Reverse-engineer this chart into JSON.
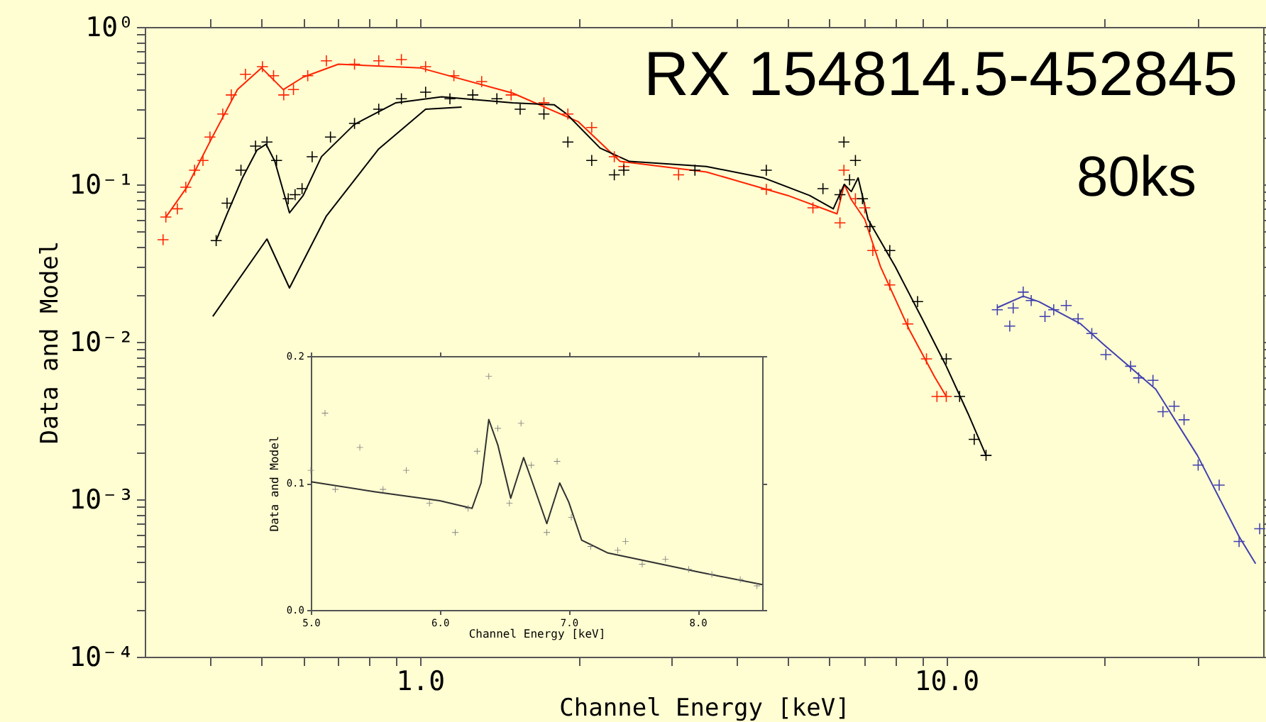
{
  "chart_data": [
    {
      "type": "scatter",
      "xlabel": "Channel Energy [keV]",
      "ylabel": "Data and Model",
      "annotations": [
        "RX 154814.5-452845",
        "80ks"
      ],
      "log": "xy",
      "grid": false,
      "marker": "cross",
      "xlim": [
        0.3,
        40
      ],
      "ylim": [
        0.0001,
        1
      ],
      "xticks": [
        {
          "value": 0.4,
          "label": null
        },
        {
          "value": 0.5,
          "label": null
        },
        {
          "value": 0.6,
          "label": null
        },
        {
          "value": 0.7,
          "label": null
        },
        {
          "value": 0.8,
          "label": null
        },
        {
          "value": 0.9,
          "label": null
        },
        {
          "value": 1,
          "label": "1.0"
        },
        {
          "value": 2,
          "label": null
        },
        {
          "value": 3,
          "label": null
        },
        {
          "value": 4,
          "label": null
        },
        {
          "value": 5,
          "label": null
        },
        {
          "value": 6,
          "label": null
        },
        {
          "value": 7,
          "label": null
        },
        {
          "value": 8,
          "label": null
        },
        {
          "value": 9,
          "label": null
        },
        {
          "value": 10,
          "label": "10.0"
        },
        {
          "value": 20,
          "label": null
        },
        {
          "value": 30,
          "label": null
        }
      ],
      "yticks": [
        {
          "value": 0.0001,
          "label": "10⁻⁴"
        },
        {
          "value": 0.0002,
          "label": null
        },
        {
          "value": 0.0003,
          "label": null
        },
        {
          "value": 0.0004,
          "label": null
        },
        {
          "value": 0.0005,
          "label": null
        },
        {
          "value": 0.0006,
          "label": null
        },
        {
          "value": 0.0007,
          "label": null
        },
        {
          "value": 0.0008,
          "label": null
        },
        {
          "value": 0.0009,
          "label": null
        },
        {
          "value": 0.001,
          "label": "10⁻³"
        },
        {
          "value": 0.002,
          "label": null
        },
        {
          "value": 0.003,
          "label": null
        },
        {
          "value": 0.004,
          "label": null
        },
        {
          "value": 0.005,
          "label": null
        },
        {
          "value": 0.006,
          "label": null
        },
        {
          "value": 0.007,
          "label": null
        },
        {
          "value": 0.008,
          "label": null
        },
        {
          "value": 0.009,
          "label": null
        },
        {
          "value": 0.01,
          "label": "10⁻²"
        },
        {
          "value": 0.02,
          "label": null
        },
        {
          "value": 0.03,
          "label": null
        },
        {
          "value": 0.04,
          "label": null
        },
        {
          "value": 0.05,
          "label": null
        },
        {
          "value": 0.06,
          "label": null
        },
        {
          "value": 0.07,
          "label": null
        },
        {
          "value": 0.08,
          "label": null
        },
        {
          "value": 0.09,
          "label": null
        },
        {
          "value": 0.1,
          "label": "10⁻¹"
        },
        {
          "value": 0.2,
          "label": null
        },
        {
          "value": 0.3,
          "label": null
        },
        {
          "value": 0.4,
          "label": null
        },
        {
          "value": 0.5,
          "label": null
        },
        {
          "value": 0.6,
          "label": null
        },
        {
          "value": 0.7,
          "label": null
        },
        {
          "value": 0.8,
          "label": null
        },
        {
          "value": 0.9,
          "label": null
        },
        {
          "value": 1,
          "label": "10⁰"
        }
      ],
      "series": [
        {
          "color": "#ff2200",
          "x": [
            0.325,
            0.329,
            0.346,
            0.359,
            0.373,
            0.387,
            0.399,
            0.422,
            0.438,
            0.466,
            0.502,
            0.527,
            0.551,
            0.575,
            0.612,
            0.664,
            0.751,
            0.835,
            0.922,
            1.025,
            1.16,
            1.31,
            1.49,
            1.72,
            1.91,
            2.12,
            2.34,
            2.44,
            3.1,
            4.55,
            5.58,
            6.28,
            6.39,
            6.72,
            7.0,
            7.25,
            7.81,
            8.45,
            9.17,
            9.6,
            10.0
          ],
          "values": [
            0.0445,
            0.062,
            0.07,
            0.096,
            0.123,
            0.142,
            0.2,
            0.28,
            0.37,
            0.5,
            0.56,
            0.49,
            0.37,
            0.4,
            0.49,
            0.61,
            0.58,
            0.61,
            0.62,
            0.56,
            0.49,
            0.45,
            0.37,
            0.33,
            0.28,
            0.23,
            0.15,
            0.13,
            0.115,
            0.093,
            0.071,
            0.057,
            0.123,
            0.081,
            0.071,
            0.038,
            0.023,
            0.013,
            0.0078,
            0.0045,
            0.0045
          ]
        },
        {
          "type": "line",
          "marker": "none",
          "color": "#ff2200",
          "x": [
            0.329,
            0.36,
            0.4,
            0.45,
            0.5,
            0.55,
            0.6,
            0.7,
            1.0,
            1.5,
            2.0,
            2.4,
            3.5,
            5.0,
            6.2,
            6.4,
            6.6,
            7.0,
            7.5,
            8.5,
            9.5,
            10.0
          ],
          "values": [
            0.062,
            0.095,
            0.19,
            0.4,
            0.55,
            0.4,
            0.48,
            0.58,
            0.55,
            0.38,
            0.25,
            0.14,
            0.12,
            0.085,
            0.065,
            0.1,
            0.08,
            0.06,
            0.03,
            0.012,
            0.006,
            0.0045
          ]
        },
        {
          "color": "#000000",
          "x": [
            0.41,
            0.43,
            0.457,
            0.487,
            0.512,
            0.534,
            0.562,
            0.579,
            0.597,
            0.624,
            0.676,
            0.751,
            0.835,
            0.922,
            1.025,
            1.14,
            1.26,
            1.4,
            1.55,
            1.72,
            1.91,
            2.12,
            2.34,
            2.44,
            3.33,
            4.55,
            5.83,
            6.28,
            6.39,
            6.55,
            6.72,
            6.93,
            7.16,
            7.81,
            8.82,
            10.0,
            10.6,
            11.3,
            11.9
          ],
          "values": [
            0.044,
            0.076,
            0.123,
            0.175,
            0.186,
            0.142,
            0.081,
            0.086,
            0.094,
            0.15,
            0.2,
            0.244,
            0.3,
            0.35,
            0.385,
            0.35,
            0.37,
            0.35,
            0.3,
            0.28,
            0.186,
            0.142,
            0.115,
            0.123,
            0.123,
            0.123,
            0.094,
            0.086,
            0.186,
            0.107,
            0.142,
            0.081,
            0.054,
            0.038,
            0.018,
            0.0078,
            0.0045,
            0.0024,
            0.0019
          ]
        },
        {
          "type": "line",
          "marker": "none",
          "color": "#000000",
          "x": [
            0.41,
            0.43,
            0.46,
            0.49,
            0.51,
            0.53,
            0.565,
            0.6,
            0.65,
            0.75,
            0.9,
            1.1,
            1.5,
            1.8,
            1.9,
            2.2,
            2.5,
            3.5,
            4.5,
            5.5,
            6.1,
            6.4,
            6.6,
            6.8,
            7.1,
            8.0,
            9.0,
            10.0,
            11.0,
            11.9
          ],
          "values": [
            0.044,
            0.065,
            0.11,
            0.165,
            0.18,
            0.14,
            0.066,
            0.085,
            0.15,
            0.24,
            0.33,
            0.36,
            0.33,
            0.32,
            0.28,
            0.17,
            0.14,
            0.13,
            0.11,
            0.085,
            0.07,
            0.1,
            0.09,
            0.11,
            0.06,
            0.03,
            0.014,
            0.007,
            0.0035,
            0.0019
          ]
        },
        {
          "type": "line",
          "marker": "none",
          "color": "#000000",
          "x": [
            0.404,
            0.512,
            0.565,
            0.664,
            0.835,
            1.025,
            1.2
          ],
          "values": [
            0.0145,
            0.045,
            0.022,
            0.063,
            0.168,
            0.3,
            0.31
          ]
        },
        {
          "color": "#4040b0",
          "x": [
            12.5,
            13.2,
            13.4,
            14.0,
            14.5,
            15.4,
            16.0,
            16.9,
            17.8,
            18.9,
            20.1,
            22.4,
            23.2,
            24.7,
            25.8,
            27.1,
            28.3,
            30.1,
            33.0,
            36.0,
            39.4
          ],
          "values": [
            0.016,
            0.0126,
            0.0164,
            0.0207,
            0.0183,
            0.0145,
            0.016,
            0.017,
            0.014,
            0.0113,
            0.0083,
            0.007,
            0.0059,
            0.0057,
            0.0036,
            0.0039,
            0.0032,
            0.00165,
            0.00123,
            0.00054,
            0.00065
          ]
        },
        {
          "type": "line",
          "marker": "none",
          "color": "#4040b0",
          "x": [
            12.5,
            14.0,
            15.0,
            18.0,
            20.0,
            25.0,
            30.0,
            36.0,
            38.7
          ],
          "values": [
            0.0165,
            0.0195,
            0.018,
            0.013,
            0.0095,
            0.005,
            0.0019,
            0.00058,
            0.00039
          ]
        }
      ]
    },
    {
      "type": "scatter",
      "xlabel": "Channel Energy [keV]",
      "ylabel": "Data and Model",
      "grid": false,
      "marker": "cross",
      "xlim": [
        5.0,
        8.5
      ],
      "ylim": [
        0.0,
        0.2
      ],
      "xticks": [
        {
          "value": 5,
          "label": "5.0"
        },
        {
          "value": 6,
          "label": "6.0"
        },
        {
          "value": 7,
          "label": "7.0"
        },
        {
          "value": 8,
          "label": "8.0"
        }
      ],
      "yticks": [
        {
          "value": 0,
          "label": "0.0"
        },
        {
          "value": 0.1,
          "label": "0.1"
        },
        {
          "value": 0.2,
          "label": "0.2"
        }
      ],
      "series": [
        {
          "color": "#808080",
          "x": [
            5.0,
            5.11,
            5.19,
            5.38,
            5.56,
            5.74,
            5.92,
            6.12,
            6.22,
            6.29,
            6.38,
            6.45,
            6.54,
            6.63,
            6.71,
            6.83,
            6.91,
            7.02,
            7.17,
            7.38,
            7.44,
            7.57,
            7.75,
            7.93,
            8.11,
            8.33,
            8.46
          ],
          "values": [
            0.11,
            0.155,
            0.095,
            0.128,
            0.095,
            0.11,
            0.084,
            0.061,
            0.08,
            0.125,
            0.184,
            0.143,
            0.084,
            0.147,
            0.114,
            0.061,
            0.117,
            0.073,
            0.05,
            0.047,
            0.054,
            0.036,
            0.04,
            0.032,
            0.028,
            0.024,
            0.019
          ]
        },
        {
          "type": "line",
          "marker": "none",
          "color": "#303030",
          "x": [
            5.0,
            5.5,
            6.0,
            6.25,
            6.32,
            6.38,
            6.45,
            6.55,
            6.65,
            6.72,
            6.83,
            6.93,
            7.0,
            7.1,
            7.3,
            8.0,
            8.5
          ],
          "values": [
            0.101,
            0.093,
            0.086,
            0.08,
            0.1,
            0.15,
            0.13,
            0.088,
            0.12,
            0.1,
            0.068,
            0.1,
            0.085,
            0.055,
            0.045,
            0.03,
            0.02
          ]
        }
      ]
    }
  ]
}
